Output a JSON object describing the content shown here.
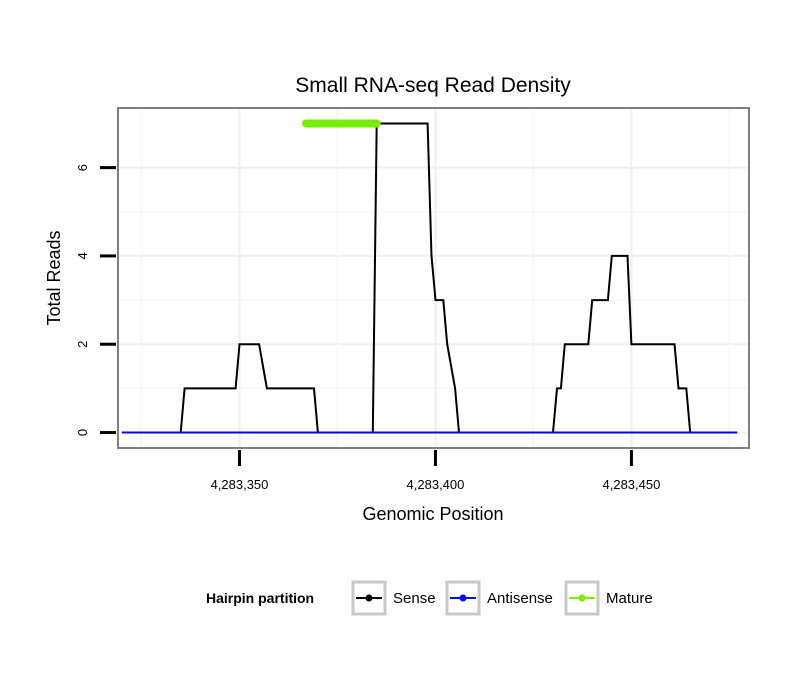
{
  "chart_data": {
    "type": "line",
    "title": "Small RNA-seq Read Density",
    "xlabel": "Genomic Position",
    "ylabel": "Total Reads",
    "xlim": [
      4283319,
      4283480
    ],
    "ylim": [
      -0.35,
      7.35
    ],
    "x_ticks": [
      4283350,
      4283400,
      4283450
    ],
    "x_tick_labels": [
      "4,283,350",
      "4,283,400",
      "4,283,450"
    ],
    "y_ticks": [
      0,
      2,
      4,
      6
    ],
    "y_tick_labels": [
      "0",
      "2",
      "4",
      "6"
    ],
    "grid": true,
    "series": [
      {
        "name": "Sense",
        "color": "#000000",
        "x": [
          4283335,
          4283336,
          4283349,
          4283350,
          4283351,
          4283354,
          4283355,
          4283357,
          4283358,
          4283369,
          4283370,
          4283384,
          4283385,
          4283398,
          4283399,
          4283400,
          4283402,
          4283403,
          4283405,
          4283406,
          4283408,
          4283430,
          4283431,
          4283432,
          4283433,
          4283439,
          4283440,
          4283444,
          4283445,
          4283449,
          4283450,
          4283453,
          4283454,
          4283461,
          4283462,
          4283464,
          4283465,
          4283475
        ],
        "values": [
          0,
          1,
          1,
          2,
          2,
          2,
          2,
          1,
          1,
          1,
          0,
          0,
          7,
          7,
          4,
          3,
          3,
          2,
          1,
          0,
          0,
          0,
          1,
          1,
          2,
          2,
          3,
          3,
          4,
          4,
          2,
          2,
          2,
          2,
          1,
          1,
          0,
          0
        ]
      },
      {
        "name": "Antisense",
        "color": "#0000ff",
        "x": [
          4283320,
          4283477
        ],
        "values": [
          0,
          0
        ]
      },
      {
        "name": "Mature",
        "color": "#77ee00",
        "x": [
          4283367,
          4283385
        ],
        "values": [
          7,
          7
        ]
      }
    ],
    "legend": {
      "title": "Hairpin partition",
      "position": "bottom",
      "entries": [
        {
          "label": "Sense",
          "color": "#000000"
        },
        {
          "label": "Antisense",
          "color": "#0000ff"
        },
        {
          "label": "Mature",
          "color": "#77ee00"
        }
      ]
    }
  }
}
